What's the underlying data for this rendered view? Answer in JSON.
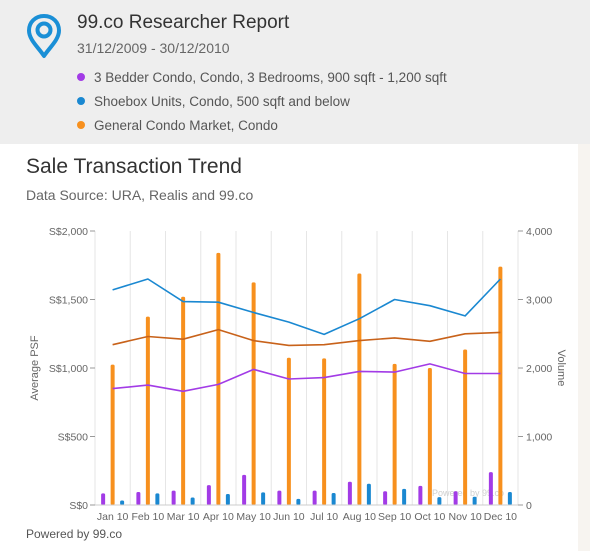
{
  "header": {
    "title": "99.co Researcher Report",
    "date_range": "31/12/2009 - 30/12/2010",
    "legend": [
      {
        "label": "3 Bedder Condo, Condo, 3 Bedrooms, 900 sqft - 1,200 sqft",
        "color": "#a23be6"
      },
      {
        "label": "Shoebox Units, Condo, 500 sqft and below",
        "color": "#1a88d1"
      },
      {
        "label": "General Condo Market, Condo",
        "color": "#f7901e"
      }
    ]
  },
  "chart_data": {
    "type": "bar",
    "title": "Sale Transaction Trend",
    "subtitle": "Data Source: URA, Realis and 99.co",
    "categories": [
      "Jan 10",
      "Feb 10",
      "Mar 10",
      "Apr 10",
      "May 10",
      "Jun 10",
      "Jul 10",
      "Aug 10",
      "Sep 10",
      "Oct 10",
      "Nov 10",
      "Dec 10"
    ],
    "ylabel_left": "Average PSF",
    "ylabel_right": "Volume",
    "ylim_left": [
      0,
      2000
    ],
    "ylim_right": [
      0,
      4000
    ],
    "left_ticks": [
      "S$0",
      "S$500",
      "S$1,000",
      "S$1,500",
      "S$2,000"
    ],
    "right_ticks": [
      "0",
      "1,000",
      "2,000",
      "3,000",
      "4,000"
    ],
    "psf_series": [
      {
        "name": "3 Bedder Condo, Condo, 3 Bedrooms, 900 sqft - 1,200 sqft",
        "color": "#a23be6",
        "values": [
          850,
          875,
          830,
          880,
          990,
          920,
          930,
          975,
          970,
          1030,
          960,
          960
        ]
      },
      {
        "name": "Shoebox Units, Condo, 500 sqft and below",
        "color": "#1a88d1",
        "values": [
          1570,
          1650,
          1485,
          1480,
          1405,
          1335,
          1245,
          1360,
          1500,
          1455,
          1380,
          1650
        ]
      },
      {
        "name": "General Condo Market, Condo",
        "color": "#c8621a",
        "values": [
          1170,
          1230,
          1210,
          1280,
          1200,
          1165,
          1170,
          1200,
          1220,
          1195,
          1250,
          1260
        ]
      }
    ],
    "volume_series": [
      {
        "name": "3 Bedder Condo, Condo, 3 Bedrooms, 900 sqft - 1,200 sqft",
        "color": "#a23be6",
        "values": [
          170,
          190,
          210,
          290,
          440,
          210,
          210,
          340,
          200,
          280,
          200,
          480
        ]
      },
      {
        "name": "Shoebox Units, Condo, 500 sqft and below",
        "color": "#1a88d1",
        "values": [
          65,
          170,
          110,
          160,
          185,
          90,
          175,
          310,
          235,
          115,
          120,
          190
        ]
      },
      {
        "name": "General Condo Market, Condo",
        "color": "#f7901e",
        "values": [
          2050,
          2750,
          3040,
          3680,
          3250,
          2150,
          2140,
          3380,
          2060,
          2000,
          2270,
          3480
        ]
      }
    ],
    "grid": "vertical",
    "legend": "top-left"
  },
  "watermark": "Powered by 99.co",
  "footer": "Powered by 99.co"
}
